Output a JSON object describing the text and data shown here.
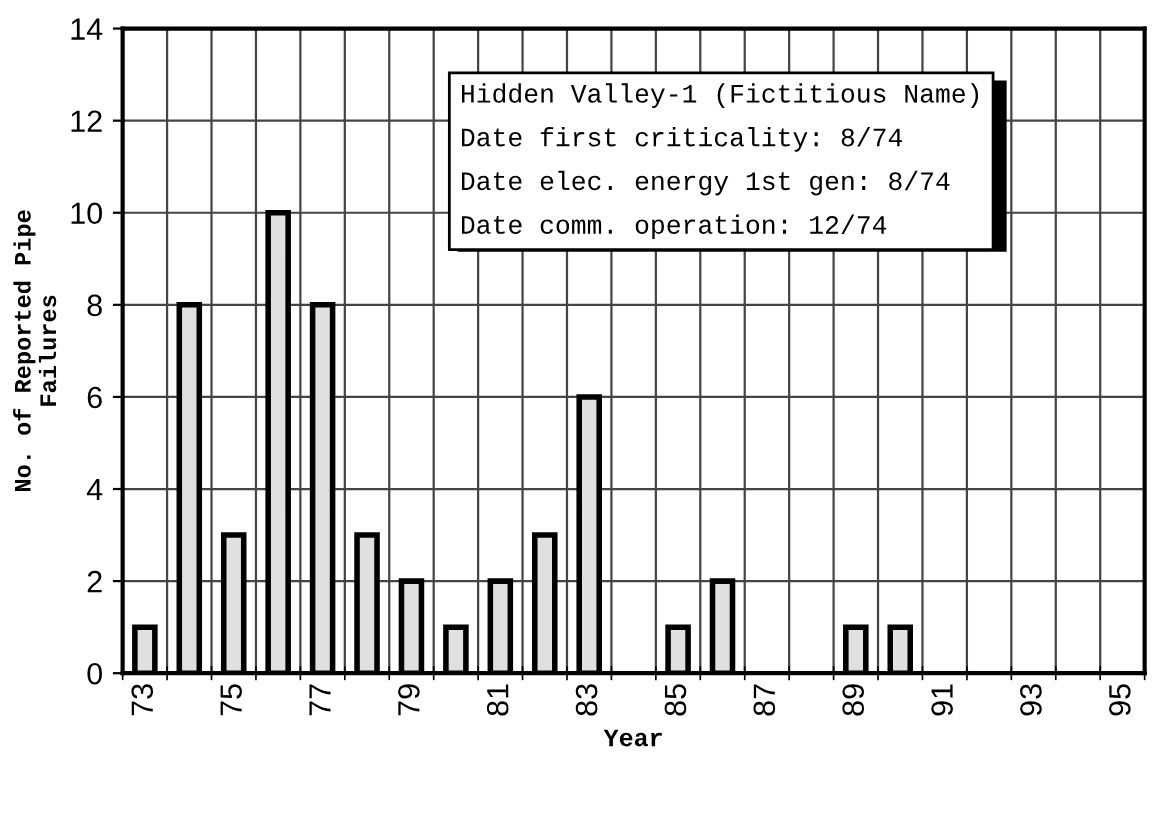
{
  "chart_data": {
    "type": "bar",
    "xlabel": "Year",
    "ylabel": "No. of Reported Pipe\nFailures",
    "categories": [
      "73",
      null,
      "75",
      null,
      "77",
      null,
      "79",
      null,
      "81",
      null,
      "83",
      null,
      "85",
      null,
      "87",
      null,
      "89",
      null,
      "91",
      null,
      "93",
      null,
      "95"
    ],
    "values": [
      1,
      8,
      3,
      10,
      8,
      3,
      2,
      1,
      2,
      3,
      6,
      0,
      1,
      2,
      0,
      0,
      1,
      1,
      0,
      0,
      0,
      0,
      0
    ],
    "color": "#e0e0e0",
    "ylim": [
      0,
      14
    ],
    "yticks": [
      0,
      2,
      4,
      6,
      8,
      10,
      12,
      14
    ],
    "grid": true,
    "annotations": [
      "Hidden Valley-1 (Fictitious Name)",
      "Date first criticality: 8/74",
      "Date elec. energy 1st gen: 8/74",
      "Date comm. operation: 12/74"
    ]
  }
}
